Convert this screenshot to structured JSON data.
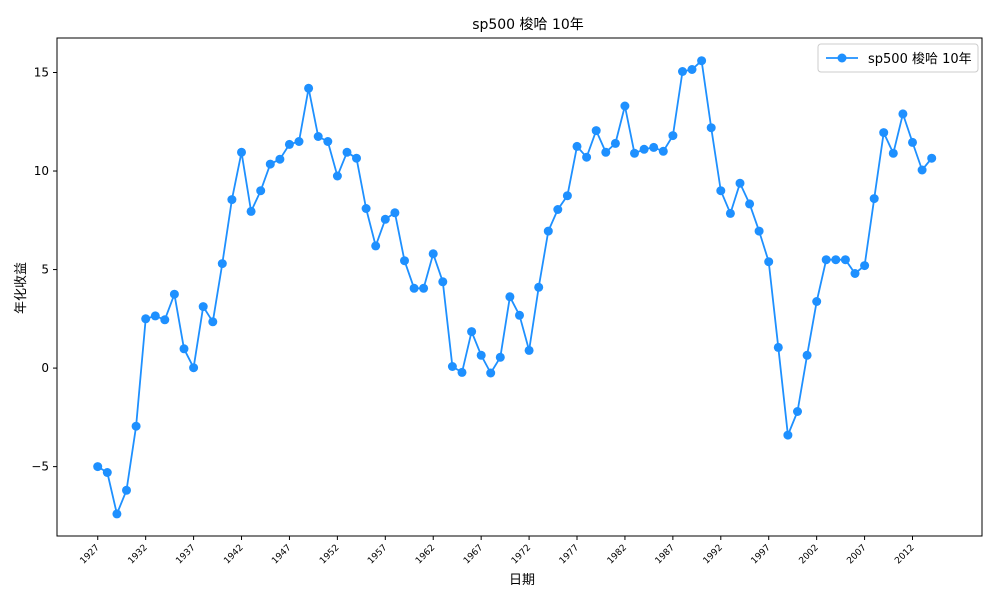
{
  "chart_data": {
    "type": "line",
    "title": "sp500 梭哈 10年",
    "xlabel": "日期",
    "ylabel": "年化收益",
    "legend_position": "top-right",
    "grid": false,
    "xlim": [
      1922.75,
      2019.25
    ],
    "ylim": [
      -8.52,
      16.75
    ],
    "x_ticks": [
      "1927",
      "1932",
      "1937",
      "1942",
      "1947",
      "1952",
      "1957",
      "1962",
      "1967",
      "1972",
      "1977",
      "1982",
      "1987",
      "1992",
      "1997",
      "2002",
      "2007",
      "2012"
    ],
    "y_ticks": [
      -5,
      0,
      5,
      10,
      15
    ],
    "y_tick_labels": [
      "−5",
      "0",
      "5",
      "10",
      "15"
    ],
    "series": [
      {
        "name": "sp500 梭哈 10年",
        "color": "#1e90ff",
        "marker": "circle",
        "x": [
          1927,
          1928,
          1929,
          1930,
          1931,
          1932,
          1933,
          1934,
          1935,
          1936,
          1937,
          1938,
          1939,
          1940,
          1941,
          1942,
          1943,
          1944,
          1945,
          1946,
          1947,
          1948,
          1949,
          1950,
          1951,
          1952,
          1953,
          1954,
          1955,
          1956,
          1957,
          1958,
          1959,
          1960,
          1961,
          1962,
          1963,
          1964,
          1965,
          1966,
          1967,
          1968,
          1969,
          1970,
          1971,
          1972,
          1973,
          1974,
          1975,
          1976,
          1977,
          1978,
          1979,
          1980,
          1981,
          1982,
          1983,
          1984,
          1985,
          1986,
          1987,
          1988,
          1989,
          1990,
          1991,
          1992,
          1993,
          1994,
          1995,
          1996,
          1997,
          1998,
          1999,
          2000,
          2001,
          2002,
          2003,
          2004,
          2005,
          2006,
          2007,
          2008,
          2009,
          2010,
          2011,
          2012,
          2013,
          2014
        ],
        "values": [
          -5.0,
          -5.3,
          -7.4,
          -6.2,
          -2.95,
          2.5,
          2.65,
          2.45,
          3.75,
          0.98,
          0.02,
          3.12,
          2.35,
          5.3,
          8.55,
          10.95,
          7.95,
          9.0,
          10.35,
          10.6,
          11.35,
          11.5,
          14.2,
          11.75,
          11.5,
          9.75,
          10.95,
          10.65,
          8.1,
          6.2,
          7.55,
          7.88,
          5.45,
          4.05,
          4.05,
          5.8,
          4.38,
          0.08,
          -0.22,
          1.85,
          0.65,
          -0.25,
          0.55,
          3.62,
          2.68,
          0.9,
          4.1,
          6.95,
          8.05,
          8.75,
          11.25,
          10.7,
          12.05,
          10.95,
          11.4,
          13.3,
          10.9,
          11.1,
          11.2,
          11.0,
          11.8,
          15.05,
          15.15,
          15.6,
          12.2,
          9.0,
          7.85,
          9.38,
          8.33,
          6.95,
          5.4,
          1.05,
          -3.4,
          -2.2,
          0.65,
          3.38,
          5.5,
          5.5,
          5.5,
          4.8,
          5.2,
          8.6,
          11.95,
          10.9,
          12.9,
          11.45,
          10.05,
          10.65
        ]
      }
    ]
  }
}
